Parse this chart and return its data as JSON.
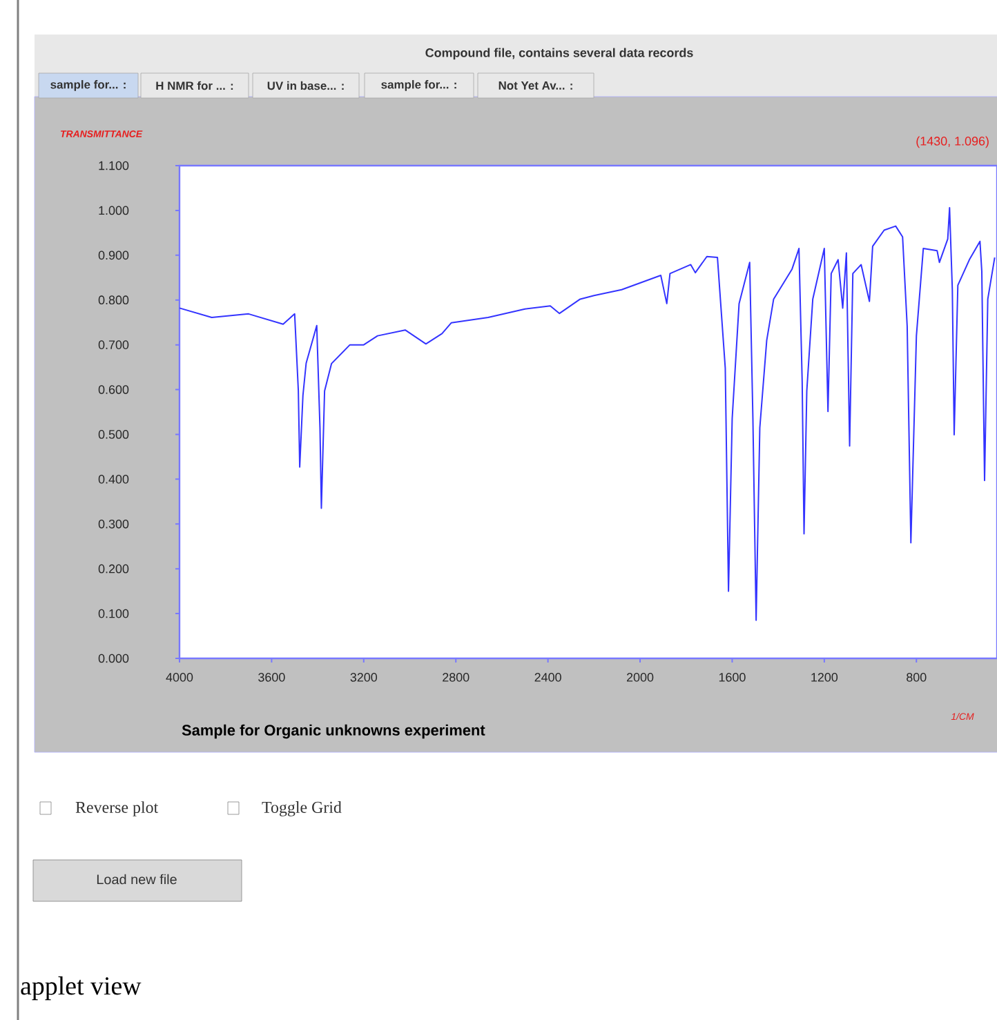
{
  "chart_data": {
    "type": "line",
    "title": "Sample for Organic unknowns experiment",
    "xlabel": "1/CM",
    "ylabel": "TRANSMITTANCE",
    "annotations": [
      "Compound file, contains several data records",
      "sample for... :",
      "H NMR for ... :",
      "UV in base... :",
      "sample for... :",
      "Not Yet Av... :",
      "(1430, 1.096)",
      "Reverse plot",
      "Toggle Grid",
      "Load new file",
      "applet view"
    ],
    "x": [
      4000,
      3860,
      3700,
      3550,
      3500,
      3484,
      3478,
      3464,
      3450,
      3404,
      3390,
      3384,
      3370,
      3340,
      3260,
      3200,
      3140,
      3020,
      2930,
      2860,
      2820,
      2660,
      2500,
      2390,
      2350,
      2260,
      2200,
      2080,
      1910,
      1884,
      1870,
      1780,
      1760,
      1710,
      1664,
      1630,
      1616,
      1600,
      1570,
      1524,
      1510,
      1496,
      1480,
      1450,
      1420,
      1340,
      1310,
      1296,
      1288,
      1276,
      1250,
      1200,
      1184,
      1170,
      1140,
      1120,
      1104,
      1090,
      1076,
      1040,
      1004,
      990,
      940,
      890,
      860,
      840,
      824,
      800,
      770,
      710,
      700,
      664,
      656,
      644,
      636,
      620,
      570,
      524,
      516,
      504,
      490,
      460
    ],
    "series": [
      {
        "color": "#3333ff",
        "values": [
          0.782,
          0.761,
          0.769,
          0.746,
          0.769,
          0.598,
          0.427,
          0.587,
          0.659,
          0.743,
          0.515,
          0.335,
          0.597,
          0.658,
          0.7,
          0.7,
          0.72,
          0.733,
          0.702,
          0.725,
          0.749,
          0.761,
          0.78,
          0.787,
          0.77,
          0.802,
          0.81,
          0.823,
          0.855,
          0.792,
          0.859,
          0.879,
          0.861,
          0.897,
          0.895,
          0.648,
          0.15,
          0.535,
          0.792,
          0.884,
          0.535,
          0.085,
          0.515,
          0.71,
          0.802,
          0.869,
          0.915,
          0.617,
          0.278,
          0.597,
          0.802,
          0.915,
          0.551,
          0.859,
          0.89,
          0.782,
          0.905,
          0.474,
          0.859,
          0.879,
          0.797,
          0.92,
          0.956,
          0.965,
          0.941,
          0.741,
          0.258,
          0.72,
          0.915,
          0.91,
          0.884,
          0.936,
          1.006,
          0.823,
          0.499,
          0.833,
          0.89,
          0.931,
          0.864,
          0.397,
          0.802,
          0.895
        ]
      }
    ],
    "xlim": [
      4000,
      450
    ],
    "ylim": [
      0,
      1.1
    ],
    "xticks": [
      4000,
      3600,
      3200,
      2800,
      2400,
      2000,
      1600,
      1200,
      800
    ],
    "yticks": [
      {
        "value": 0,
        "label": "0.000"
      },
      {
        "value": 0.1,
        "label": "0.100"
      },
      {
        "value": 0.2,
        "label": "0.200"
      },
      {
        "value": 0.3,
        "label": "0.300"
      },
      {
        "value": 0.4,
        "label": "0.400"
      },
      {
        "value": 0.5,
        "label": "0.500"
      },
      {
        "value": 0.6,
        "label": "0.600"
      },
      {
        "value": 0.7,
        "label": "0.700"
      },
      {
        "value": 0.8,
        "label": "0.800"
      },
      {
        "value": 0.9,
        "label": "0.900"
      },
      {
        "value": 1.0,
        "label": "1.000"
      },
      {
        "value": 1.1,
        "label": "1.100"
      }
    ]
  }
}
